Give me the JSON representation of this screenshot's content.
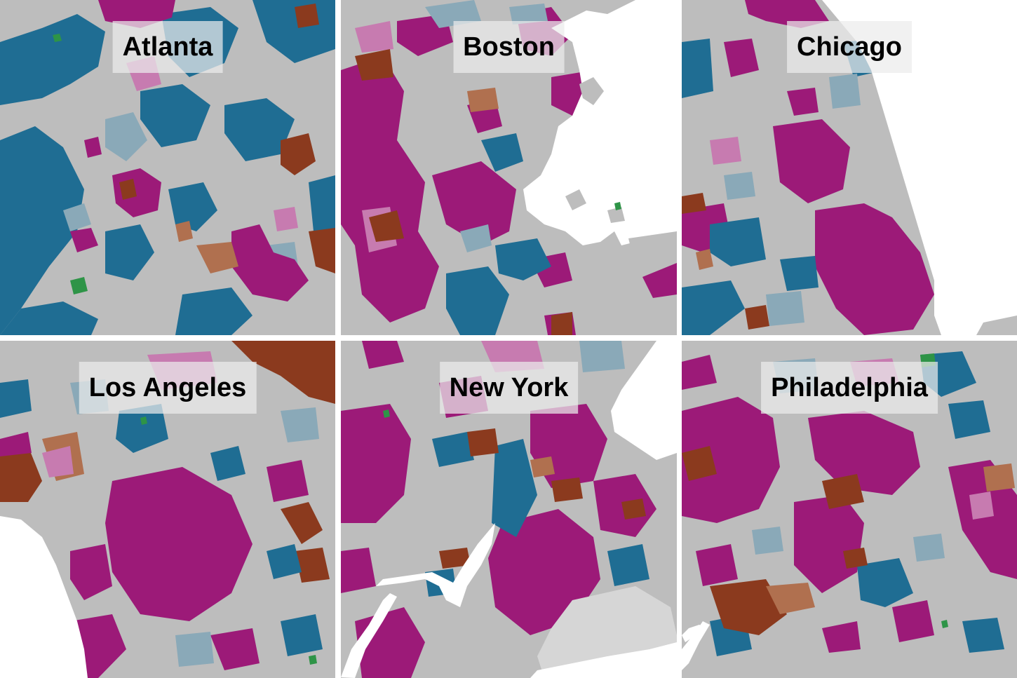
{
  "panels": [
    {
      "name": "Atlanta"
    },
    {
      "name": "Boston"
    },
    {
      "name": "Chicago"
    },
    {
      "name": "Los Angeles"
    },
    {
      "name": "New York"
    },
    {
      "name": "Philadelphia"
    }
  ],
  "colors": {
    "background": "#bdbdbd",
    "magenta": "#9c1a78",
    "magenta_light": "#c77bb0",
    "teal": "#1f6d93",
    "teal_light": "#8aa9b8",
    "brown": "#8b3a1e",
    "brown_light": "#b0704f",
    "green": "#2e9447",
    "water": "#ffffff"
  }
}
